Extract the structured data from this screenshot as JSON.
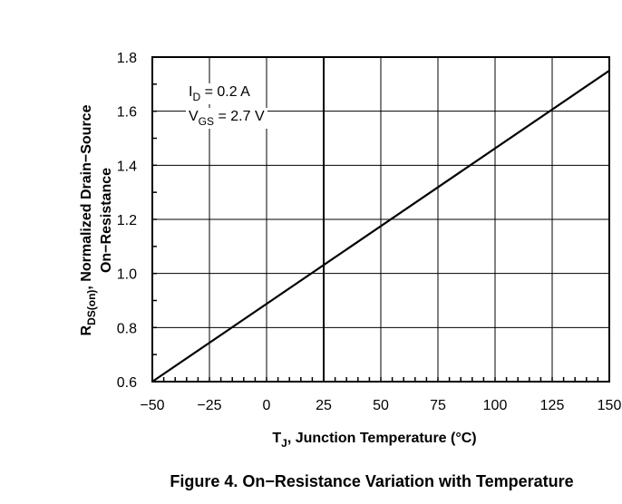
{
  "chart_data": {
    "type": "line",
    "title": "Figure 4. On−Resistance Variation with Temperature",
    "xlabel": {
      "prefix": "T",
      "sub": "J",
      "suffix": ", Junction Temperature (°C)"
    },
    "ylabel": {
      "line1_prefix": "R",
      "line1_sub": "DS(on)",
      "line1_suffix": ", Normalized Drain−Source",
      "line2": "On−Resistance"
    },
    "xlim": [
      -50,
      150
    ],
    "ylim": [
      0.6,
      1.8
    ],
    "x_ticks": [
      -50,
      -25,
      0,
      25,
      50,
      75,
      100,
      125,
      150
    ],
    "x_tick_labels": [
      "−50",
      "−25",
      "0",
      "25",
      "50",
      "75",
      "100",
      "125",
      "150"
    ],
    "y_ticks": [
      0.6,
      0.8,
      1.0,
      1.2,
      1.4,
      1.6,
      1.8
    ],
    "y_tick_labels": [
      "0.6",
      "0.8",
      "1.0",
      "1.2",
      "1.4",
      "1.6",
      "1.8"
    ],
    "grid": true,
    "annotations": [
      {
        "prefix": "I",
        "sub": "D",
        "suffix": " = 0.2 A"
      },
      {
        "prefix": "V",
        "sub": "GS",
        "suffix": " = 2.7 V"
      }
    ],
    "series": [
      {
        "x": [
          -50,
          150
        ],
        "y": [
          0.6,
          1.75
        ]
      }
    ]
  }
}
